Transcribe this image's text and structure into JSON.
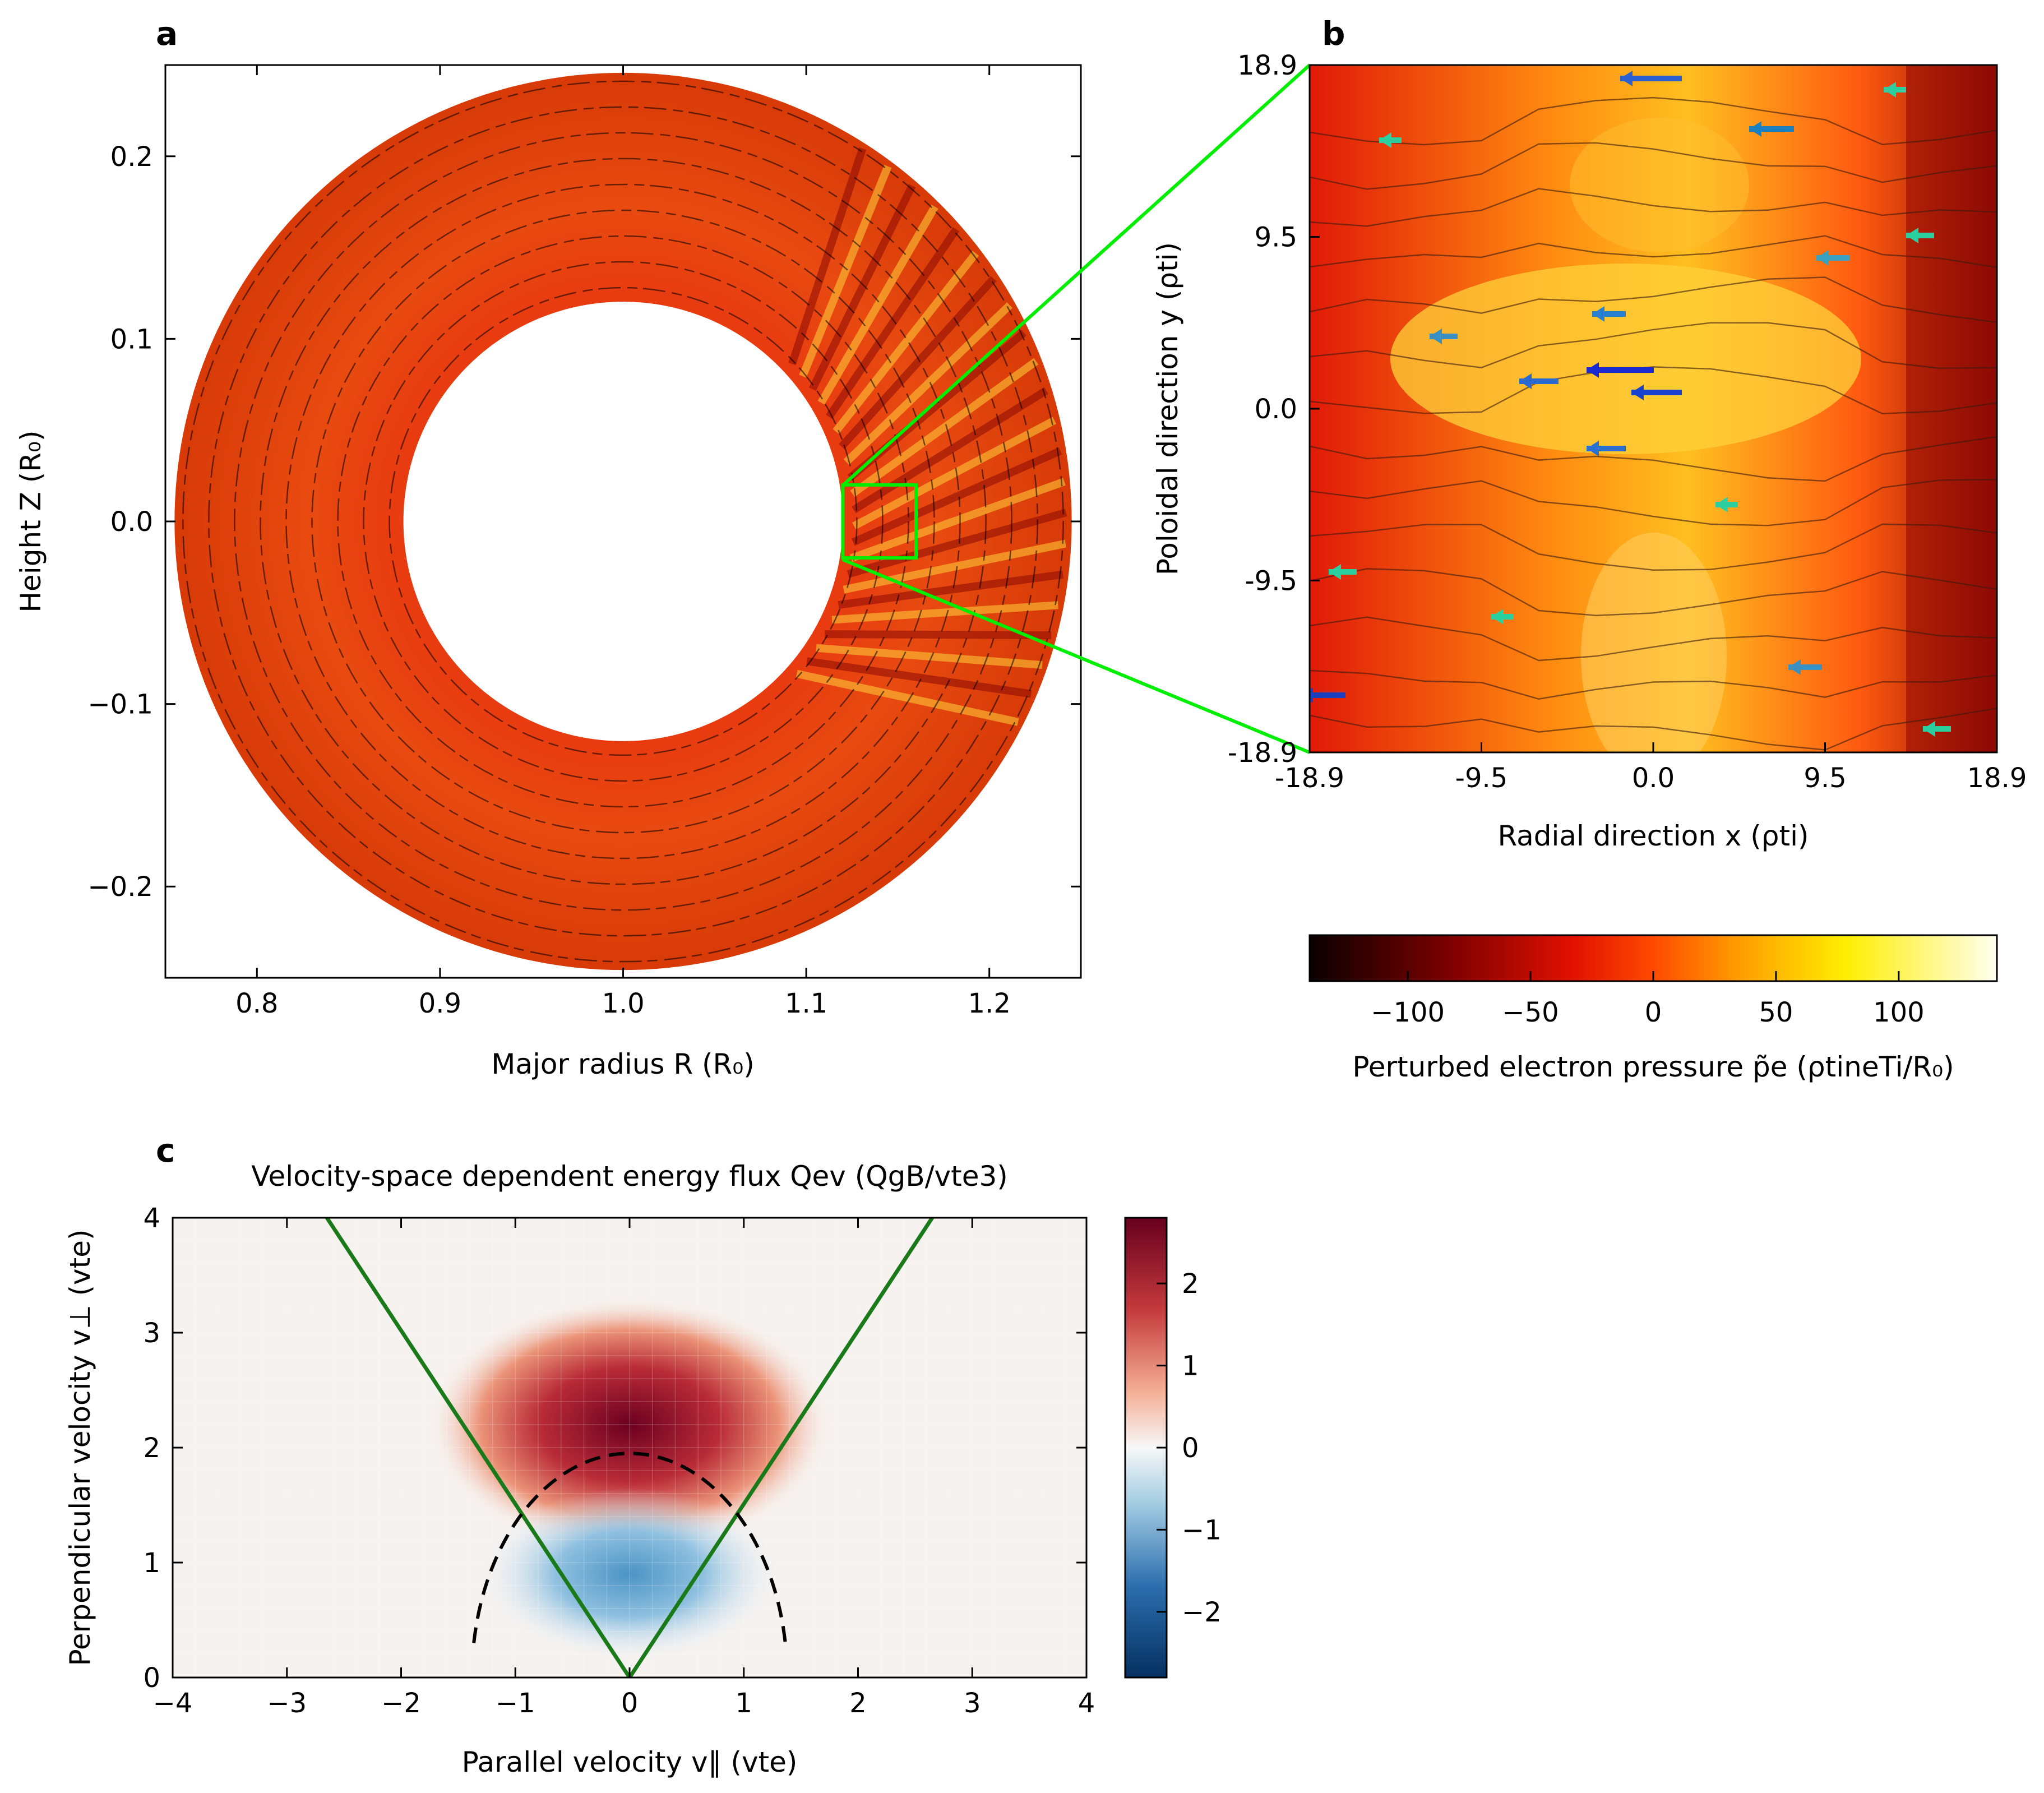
{
  "panels": {
    "a": {
      "letter": "a",
      "xlabel": "Major radius R (R₀)",
      "ylabel": "Height Z (R₀)",
      "xlim": [
        0.75,
        1.25
      ],
      "ylim": [
        -0.25,
        0.25
      ],
      "xticks": [
        "0.8",
        "0.9",
        "1.0",
        "1.1",
        "1.2"
      ],
      "yticks": [
        "0.2",
        "0.1",
        "0.0",
        "−0.1",
        "−0.2"
      ],
      "annulus": {
        "center_R": 1.0,
        "inner_radius": 0.12,
        "outer_radius": 0.245
      },
      "zoom_box": {
        "R_min": 1.12,
        "R_max": 1.16,
        "Z_min": -0.02,
        "Z_max": 0.02,
        "color": "#00ee00"
      }
    },
    "b": {
      "letter": "b",
      "xlabel": "Radial direction x (ρti)",
      "ylabel": "Poloidal direction y (ρti)",
      "xticks": [
        "-18.9",
        "-9.5",
        "0.0",
        "9.5",
        "18.9"
      ],
      "yticks": [
        "18.9",
        "9.5",
        "0.0",
        "-9.5",
        "-18.9"
      ],
      "colorbar": {
        "ticks": [
          "−100",
          "−50",
          "0",
          "50",
          "100"
        ],
        "label": "Perturbed electron pressure p̃e (ρtineTi/R₀)",
        "range": [
          -140,
          140
        ]
      }
    },
    "c": {
      "letter": "c",
      "title": "Velocity-space dependent energy flux Qev (QgB/vte3)",
      "xlabel": "Parallel velocity v∥ (vte)",
      "ylabel": "Perpendicular velocity v⊥ (vte)",
      "xticks": [
        "−4",
        "−3",
        "−2",
        "−1",
        "0",
        "1",
        "2",
        "3",
        "4"
      ],
      "yticks": [
        "4",
        "3",
        "2",
        "1",
        "0"
      ],
      "colorbar_ticks": [
        "2",
        "1",
        "0",
        "−1",
        "−2"
      ]
    }
  },
  "chart_data": [
    {
      "type": "heatmap",
      "panel": "a",
      "title": "",
      "xlabel": "Major radius R (R₀)",
      "ylabel": "Height Z (R₀)",
      "xlim": [
        0.75,
        1.25
      ],
      "ylim": [
        -0.25,
        0.25
      ],
      "description_values": {
        "annulus_inner_radius": 0.12,
        "annulus_outer_radius": 0.245
      }
    },
    {
      "type": "heatmap",
      "panel": "b",
      "xlabel": "Radial direction x (ρti)",
      "ylabel": "Poloidal direction y (ρti)",
      "xlim": [
        -18.9,
        18.9
      ],
      "ylim": [
        -18.9,
        18.9
      ],
      "colorbar_range": [
        -140,
        140
      ]
    },
    {
      "type": "heatmap",
      "panel": "c",
      "title": "Velocity-space dependent energy flux Qev (QgB/vte3)",
      "xlabel": "Parallel velocity v∥ (vte)",
      "ylabel": "Perpendicular velocity v⊥ (vte)",
      "xlim": [
        -4,
        4
      ],
      "ylim": [
        0,
        4
      ],
      "colorbar_range": [
        -2.8,
        2.8
      ],
      "positive_peak": {
        "vpar": 0.0,
        "vperp": 2.2,
        "value": 2.7
      },
      "negative_peak": {
        "vpar": 0.0,
        "vperp": 0.9,
        "value": -1.3
      },
      "lines": [
        {
          "kind": "trapped-passing boundary",
          "points": [
            [
              -2.65,
              4.0
            ],
            [
              0.0,
              0.0
            ],
            [
              2.65,
              4.0
            ]
          ],
          "color": "#1a7a1a"
        },
        {
          "kind": "resonance arc (dashed)",
          "center": [
            0,
            0
          ],
          "rx": 1.38,
          "ry": 1.95,
          "from_vperp": 0.3,
          "color": "#000000"
        }
      ]
    }
  ]
}
